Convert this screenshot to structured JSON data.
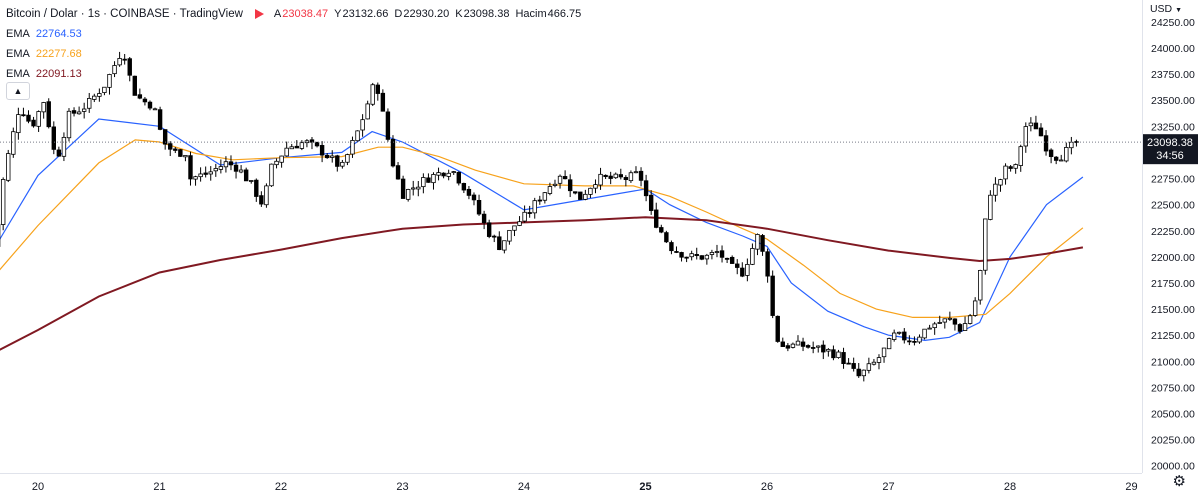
{
  "header": {
    "symbol": "Bitcoin / Dolar · 1s · COINBASE · TradingView",
    "ohlc": [
      {
        "k": "A",
        "v": "23038.47"
      },
      {
        "k": "Y",
        "v": "23132.66"
      },
      {
        "k": "D",
        "v": "22930.20"
      },
      {
        "k": "K",
        "v": "23098.38"
      },
      {
        "k": "Hacim",
        "v": "466.75"
      }
    ],
    "emas": [
      {
        "label": "EMA",
        "value": "22764.53",
        "color": "#2962ff"
      },
      {
        "label": "EMA",
        "value": "22277.68",
        "color": "#f7a21b"
      },
      {
        "label": "EMA",
        "value": "22091.13",
        "color": "#801922"
      }
    ],
    "collapse_icon": "chevron-up-icon",
    "currency": "USD",
    "currency_icon": "chevron-down-icon",
    "settings_icon": "gear-icon"
  },
  "price_label": {
    "value": "23098.38",
    "countdown": "34:56"
  },
  "colors": {
    "up": "#ffffff",
    "down": "#000000",
    "wick": "#000000",
    "grid": "#f0f3fa",
    "ema_fast": "#2962ff",
    "ema_mid": "#f7a21b",
    "ema_slow": "#801922"
  },
  "chart_data": {
    "type": "candlestick",
    "x_tick_labels": [
      "20",
      "21",
      "22",
      "23",
      "24",
      "25",
      "26",
      "27",
      "28",
      "29"
    ],
    "x_tick_bold": "25",
    "y_ticks": [
      20000,
      20250,
      20500,
      20750,
      21000,
      21250,
      21500,
      21750,
      22000,
      22250,
      22500,
      22750,
      23000,
      23250,
      23500,
      23750,
      24000,
      24250
    ],
    "ylim": [
      19930,
      24460
    ],
    "grid": false,
    "last_price": 23098.38,
    "anchors": [
      [
        19.65,
        22100
      ],
      [
        19.72,
        22800
      ],
      [
        19.85,
        23450
      ],
      [
        19.95,
        23250
      ],
      [
        20.05,
        23500
      ],
      [
        20.15,
        22900
      ],
      [
        20.25,
        23350
      ],
      [
        20.4,
        23450
      ],
      [
        20.55,
        23650
      ],
      [
        20.7,
        24000
      ],
      [
        20.78,
        23600
      ],
      [
        20.85,
        23500
      ],
      [
        20.95,
        23450
      ],
      [
        21.03,
        23100
      ],
      [
        21.12,
        23000
      ],
      [
        21.22,
        23000
      ],
      [
        21.25,
        22750
      ],
      [
        21.4,
        22800
      ],
      [
        21.55,
        22900
      ],
      [
        21.65,
        22850
      ],
      [
        21.75,
        22700
      ],
      [
        21.85,
        22500
      ],
      [
        21.92,
        22850
      ],
      [
        22.05,
        23050
      ],
      [
        22.2,
        23100
      ],
      [
        22.35,
        23000
      ],
      [
        22.5,
        22850
      ],
      [
        22.65,
        23250
      ],
      [
        22.78,
        23700
      ],
      [
        22.85,
        23300
      ],
      [
        22.92,
        22900
      ],
      [
        23.0,
        22600
      ],
      [
        23.2,
        22750
      ],
      [
        23.4,
        22850
      ],
      [
        23.55,
        22600
      ],
      [
        23.7,
        22250
      ],
      [
        23.8,
        22100
      ],
      [
        23.92,
        22300
      ],
      [
        24.02,
        22400
      ],
      [
        24.15,
        22600
      ],
      [
        24.3,
        22800
      ],
      [
        24.45,
        22550
      ],
      [
        24.6,
        22750
      ],
      [
        24.85,
        22750
      ],
      [
        24.95,
        22800
      ],
      [
        25.05,
        22400
      ],
      [
        25.2,
        22100
      ],
      [
        25.35,
        22000
      ],
      [
        25.5,
        22000
      ],
      [
        25.6,
        22050
      ],
      [
        25.7,
        21900
      ],
      [
        25.8,
        21850
      ],
      [
        25.92,
        22200
      ],
      [
        26.0,
        21900
      ],
      [
        26.05,
        21400
      ],
      [
        26.1,
        21150
      ],
      [
        26.3,
        21150
      ],
      [
        26.5,
        21100
      ],
      [
        26.6,
        21050
      ],
      [
        26.75,
        20850
      ],
      [
        26.9,
        21000
      ],
      [
        27.05,
        21250
      ],
      [
        27.2,
        21200
      ],
      [
        27.35,
        21350
      ],
      [
        27.5,
        21400
      ],
      [
        27.6,
        21300
      ],
      [
        27.7,
        21500
      ],
      [
        27.75,
        21800
      ],
      [
        27.82,
        22600
      ],
      [
        27.9,
        22700
      ],
      [
        27.97,
        22850
      ],
      [
        28.05,
        22850
      ],
      [
        28.12,
        23250
      ],
      [
        28.22,
        23250
      ],
      [
        28.32,
        23000
      ],
      [
        28.4,
        22950
      ],
      [
        28.5,
        23050
      ],
      [
        28.55,
        23098
      ]
    ],
    "series": [
      {
        "name": "EMA",
        "value_label": "22764.53",
        "color": "#2962ff",
        "points": [
          [
            19.65,
            22100
          ],
          [
            20.0,
            22780
          ],
          [
            20.5,
            23320
          ],
          [
            21.0,
            23250
          ],
          [
            21.5,
            22880
          ],
          [
            22.0,
            22950
          ],
          [
            22.5,
            23000
          ],
          [
            22.75,
            23200
          ],
          [
            23.0,
            23100
          ],
          [
            23.5,
            22800
          ],
          [
            24.0,
            22450
          ],
          [
            24.5,
            22550
          ],
          [
            25.0,
            22650
          ],
          [
            25.2,
            22500
          ],
          [
            25.5,
            22330
          ],
          [
            25.8,
            22200
          ],
          [
            26.0,
            22100
          ],
          [
            26.2,
            21750
          ],
          [
            26.5,
            21480
          ],
          [
            26.8,
            21330
          ],
          [
            27.0,
            21250
          ],
          [
            27.3,
            21200
          ],
          [
            27.5,
            21230
          ],
          [
            27.75,
            21370
          ],
          [
            28.0,
            22000
          ],
          [
            28.3,
            22500
          ],
          [
            28.6,
            22765
          ]
        ]
      },
      {
        "name": "EMA",
        "value_label": "22277.68",
        "color": "#f7a21b",
        "points": [
          [
            19.65,
            21830
          ],
          [
            20.0,
            22300
          ],
          [
            20.5,
            22900
          ],
          [
            20.8,
            23120
          ],
          [
            21.0,
            23100
          ],
          [
            21.3,
            22990
          ],
          [
            21.6,
            22930
          ],
          [
            22.0,
            22950
          ],
          [
            22.5,
            22960
          ],
          [
            22.8,
            23050
          ],
          [
            23.0,
            23050
          ],
          [
            23.3,
            22960
          ],
          [
            23.6,
            22830
          ],
          [
            24.0,
            22700
          ],
          [
            24.5,
            22680
          ],
          [
            24.9,
            22680
          ],
          [
            25.2,
            22580
          ],
          [
            25.5,
            22430
          ],
          [
            25.8,
            22270
          ],
          [
            26.0,
            22170
          ],
          [
            26.3,
            21920
          ],
          [
            26.6,
            21650
          ],
          [
            26.9,
            21500
          ],
          [
            27.2,
            21420
          ],
          [
            27.5,
            21420
          ],
          [
            27.8,
            21450
          ],
          [
            28.0,
            21650
          ],
          [
            28.3,
            22000
          ],
          [
            28.6,
            22278
          ]
        ]
      },
      {
        "name": "EMA",
        "value_label": "22091.13",
        "color": "#801922",
        "points": [
          [
            19.65,
            21090
          ],
          [
            20.0,
            21300
          ],
          [
            20.5,
            21620
          ],
          [
            21.0,
            21850
          ],
          [
            21.5,
            21970
          ],
          [
            22.0,
            22070
          ],
          [
            22.5,
            22180
          ],
          [
            23.0,
            22270
          ],
          [
            23.5,
            22310
          ],
          [
            24.0,
            22330
          ],
          [
            24.5,
            22350
          ],
          [
            25.0,
            22380
          ],
          [
            25.5,
            22350
          ],
          [
            26.0,
            22270
          ],
          [
            26.5,
            22160
          ],
          [
            27.0,
            22060
          ],
          [
            27.5,
            21990
          ],
          [
            27.75,
            21960
          ],
          [
            28.0,
            21980
          ],
          [
            28.3,
            22030
          ],
          [
            28.6,
            22091
          ]
        ]
      }
    ]
  }
}
